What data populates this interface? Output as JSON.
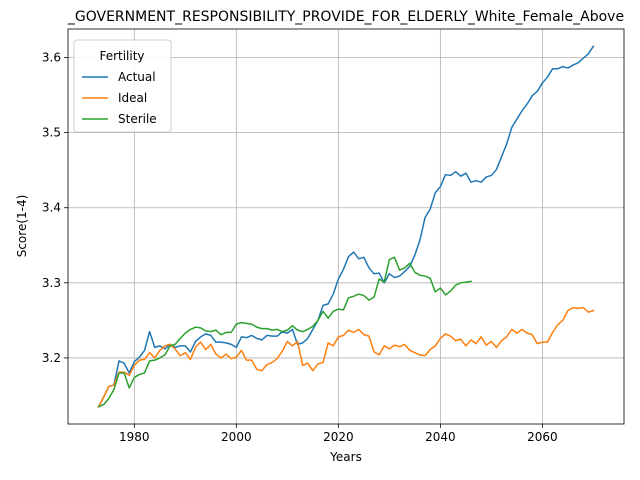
{
  "chart_data": {
    "type": "line",
    "title": "_GOVERNMENT_RESPONSIBILITY_PROVIDE_FOR_ELDERLY_White_Female_Above",
    "xlabel": "Years",
    "ylabel": "Score(1-4)",
    "xlim": [
      1967,
      2076
    ],
    "ylim": [
      3.112,
      3.638
    ],
    "xticks": [
      1980,
      2000,
      2020,
      2040,
      2060
    ],
    "yticks": [
      3.2,
      3.3,
      3.4,
      3.5,
      3.6
    ],
    "xtick_labels": [
      "1980",
      "2000",
      "2020",
      "2040",
      "2060"
    ],
    "ytick_labels": [
      "3.2",
      "3.3",
      "3.4",
      "3.5",
      "3.6"
    ],
    "grid": true,
    "legend": {
      "title": "Fertility",
      "placement": "top-left"
    },
    "series": [
      {
        "name": "Actual",
        "color": "#1f77b4",
        "x": [
          1973,
          1974,
          1975,
          1976,
          1977,
          1978,
          1979,
          1980,
          1981,
          1982,
          1983,
          1984,
          1985,
          1986,
          1987,
          1988,
          1989,
          1990,
          1991,
          1992,
          1993,
          1994,
          1995,
          1996,
          1997,
          1998,
          1999,
          2000,
          2001,
          2002,
          2003,
          2004,
          2005,
          2006,
          2007,
          2008,
          2009,
          2010,
          2011,
          2012,
          2013,
          2014,
          2015,
          2016,
          2017,
          2018,
          2019,
          2020,
          2021,
          2022,
          2023,
          2024,
          2025,
          2026,
          2027,
          2028,
          2029,
          2030,
          2031,
          2032,
          2033,
          2034,
          2035,
          2036,
          2037,
          2038,
          2039,
          2040,
          2041,
          2042,
          2043,
          2044,
          2045,
          2046,
          2047,
          2048,
          2049,
          2050,
          2051,
          2052,
          2053,
          2054,
          2055,
          2056,
          2057,
          2058,
          2059,
          2060,
          2061,
          2062,
          2063,
          2064,
          2065,
          2066,
          2067,
          2068,
          2069,
          2070
        ],
        "values": [
          3.135,
          3.148,
          3.162,
          3.164,
          3.196,
          3.193,
          3.18,
          3.195,
          3.201,
          3.21,
          3.235,
          3.214,
          3.216,
          3.212,
          3.218,
          3.214,
          3.216,
          3.216,
          3.208,
          3.222,
          3.228,
          3.232,
          3.23,
          3.221,
          3.221,
          3.22,
          3.218,
          3.214,
          3.228,
          3.227,
          3.23,
          3.226,
          3.224,
          3.23,
          3.229,
          3.229,
          3.235,
          3.233,
          3.238,
          3.218,
          3.22,
          3.226,
          3.238,
          3.25,
          3.27,
          3.272,
          3.285,
          3.305,
          3.318,
          3.335,
          3.341,
          3.332,
          3.334,
          3.32,
          3.312,
          3.313,
          3.3,
          3.312,
          3.307,
          3.309,
          3.315,
          3.322,
          3.337,
          3.357,
          3.387,
          3.398,
          3.42,
          3.428,
          3.444,
          3.443,
          3.448,
          3.442,
          3.446,
          3.434,
          3.436,
          3.434,
          3.441,
          3.443,
          3.451,
          3.468,
          3.485,
          3.507,
          3.518,
          3.529,
          3.538,
          3.549,
          3.555,
          3.566,
          3.574,
          3.585,
          3.585,
          3.588,
          3.586,
          3.59,
          3.593,
          3.599,
          3.605,
          3.615
        ]
      },
      {
        "name": "Ideal",
        "color": "#ff7f0e",
        "x": [
          1973,
          1974,
          1975,
          1976,
          1977,
          1978,
          1979,
          1980,
          1981,
          1982,
          1983,
          1984,
          1985,
          1986,
          1987,
          1988,
          1989,
          1990,
          1991,
          1992,
          1993,
          1994,
          1995,
          1996,
          1997,
          1998,
          1999,
          2000,
          2001,
          2002,
          2003,
          2004,
          2005,
          2006,
          2007,
          2008,
          2009,
          2010,
          2011,
          2012,
          2013,
          2014,
          2015,
          2016,
          2017,
          2018,
          2019,
          2020,
          2021,
          2022,
          2023,
          2024,
          2025,
          2026,
          2027,
          2028,
          2029,
          2030,
          2031,
          2032,
          2033,
          2034,
          2035,
          2036,
          2037,
          2038,
          2039,
          2040,
          2041,
          2042,
          2043,
          2044,
          2045,
          2046,
          2047,
          2048,
          2049,
          2050,
          2051,
          2052,
          2053,
          2054,
          2055,
          2056,
          2057,
          2058,
          2059,
          2060,
          2061,
          2062,
          2063,
          2064,
          2065,
          2066,
          2067,
          2068,
          2069,
          2070
        ],
        "values": [
          3.135,
          3.148,
          3.162,
          3.164,
          3.181,
          3.181,
          3.177,
          3.19,
          3.197,
          3.198,
          3.207,
          3.2,
          3.21,
          3.216,
          3.218,
          3.212,
          3.203,
          3.207,
          3.198,
          3.214,
          3.221,
          3.211,
          3.218,
          3.205,
          3.2,
          3.205,
          3.199,
          3.201,
          3.21,
          3.197,
          3.197,
          3.185,
          3.183,
          3.191,
          3.194,
          3.199,
          3.209,
          3.222,
          3.216,
          3.222,
          3.19,
          3.193,
          3.183,
          3.192,
          3.194,
          3.22,
          3.216,
          3.228,
          3.23,
          3.237,
          3.234,
          3.238,
          3.231,
          3.229,
          3.208,
          3.204,
          3.216,
          3.212,
          3.217,
          3.215,
          3.218,
          3.21,
          3.207,
          3.204,
          3.203,
          3.211,
          3.216,
          3.226,
          3.232,
          3.229,
          3.223,
          3.225,
          3.216,
          3.224,
          3.219,
          3.228,
          3.217,
          3.222,
          3.214,
          3.223,
          3.228,
          3.238,
          3.233,
          3.238,
          3.233,
          3.231,
          3.219,
          3.221,
          3.221,
          3.234,
          3.244,
          3.25,
          3.263,
          3.267,
          3.266,
          3.267,
          3.261,
          3.263
        ]
      },
      {
        "name": "Sterile",
        "color": "#2ca02c",
        "x": [
          1973,
          1974,
          1975,
          1976,
          1977,
          1978,
          1979,
          1980,
          1981,
          1982,
          1983,
          1984,
          1985,
          1986,
          1987,
          1988,
          1989,
          1990,
          1991,
          1992,
          1993,
          1994,
          1995,
          1996,
          1997,
          1998,
          1999,
          2000,
          2001,
          2002,
          2003,
          2004,
          2005,
          2006,
          2007,
          2008,
          2009,
          2010,
          2011,
          2012,
          2013,
          2014,
          2015,
          2016,
          2017,
          2018,
          2019,
          2020,
          2021,
          2022,
          2023,
          2024,
          2025,
          2026,
          2027,
          2028,
          2029,
          2030,
          2031,
          2032,
          2033,
          2034,
          2035,
          2036,
          2037,
          2038,
          2039,
          2040,
          2041,
          2042,
          2043,
          2044,
          2045,
          2046
        ],
        "values": [
          3.135,
          3.138,
          3.146,
          3.158,
          3.18,
          3.18,
          3.16,
          3.174,
          3.178,
          3.18,
          3.196,
          3.197,
          3.2,
          3.204,
          3.216,
          3.218,
          3.226,
          3.233,
          3.238,
          3.241,
          3.24,
          3.236,
          3.235,
          3.237,
          3.231,
          3.234,
          3.234,
          3.245,
          3.247,
          3.246,
          3.245,
          3.241,
          3.239,
          3.239,
          3.237,
          3.238,
          3.235,
          3.237,
          3.243,
          3.237,
          3.235,
          3.238,
          3.242,
          3.25,
          3.262,
          3.253,
          3.262,
          3.265,
          3.264,
          3.28,
          3.282,
          3.285,
          3.283,
          3.277,
          3.281,
          3.305,
          3.301,
          3.331,
          3.334,
          3.317,
          3.32,
          3.326,
          3.314,
          3.31,
          3.309,
          3.306,
          3.288,
          3.293,
          3.284,
          3.289,
          3.297,
          3.3,
          3.301,
          3.302
        ]
      }
    ]
  }
}
